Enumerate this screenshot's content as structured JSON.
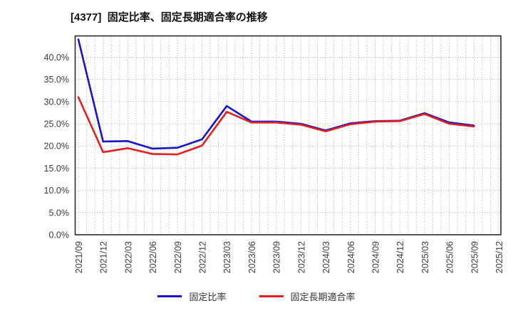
{
  "title": "[4377]  固定比率、固定長期適合率の推移",
  "colors": {
    "blue_series": "#1414d2",
    "red_series": "#e61e1e",
    "grid": "#a8a8a8",
    "border": "#2b2b2b",
    "tick_text": "#3c3c3c",
    "title_text": "#111111"
  },
  "legend": {
    "items": [
      {
        "label": "固定比率",
        "color": "#1414d2"
      },
      {
        "label": "固定長期適合率",
        "color": "#e61e1e"
      }
    ]
  },
  "chart_data": {
    "type": "line",
    "title": "[4377]  固定比率、固定長期適合率の推移",
    "x": [
      "2021/09",
      "2021/12",
      "2022/03",
      "2022/06",
      "2022/09",
      "2022/12",
      "2023/03",
      "2023/06",
      "2023/09",
      "2023/12",
      "2024/03",
      "2024/06",
      "2024/09",
      "2024/12",
      "2025/03",
      "2025/06",
      "2025/09",
      "2025/12"
    ],
    "series": [
      {
        "name": "固定比率",
        "color": "#1414d2",
        "values": [
          44.0,
          21.0,
          21.1,
          19.4,
          19.6,
          21.5,
          29.0,
          25.5,
          25.5,
          25.0,
          23.5,
          25.1,
          25.6,
          25.7,
          27.4,
          25.3,
          24.6,
          null
        ]
      },
      {
        "name": "固定長期適合率",
        "color": "#e61e1e",
        "values": [
          31.0,
          18.6,
          19.5,
          18.2,
          18.1,
          20.1,
          27.7,
          25.3,
          25.3,
          24.8,
          23.3,
          24.9,
          25.5,
          25.6,
          27.2,
          25.0,
          24.4,
          null
        ]
      }
    ],
    "ylim": [
      0.0,
      44.8
    ],
    "yticks": [
      0,
      5,
      10,
      15,
      20,
      25,
      30,
      35,
      40
    ],
    "yticklabels": [
      "0.0%",
      "5.0%",
      "10.0%",
      "15.0%",
      "20.0%",
      "25.0%",
      "30.0%",
      "35.0%",
      "40.0%"
    ],
    "ylabel": "",
    "xlabel": "",
    "x_minor_divisions_per_interval": 3,
    "grid": true,
    "grid_style": "dotted",
    "legend_position": "bottom",
    "x_tick_label_rotation_deg": -90
  }
}
